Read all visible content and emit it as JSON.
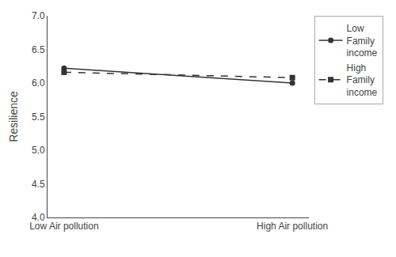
{
  "chart_data": {
    "type": "line",
    "categories": [
      "Low Air pollution",
      "High Air pollution"
    ],
    "series": [
      {
        "name": "Low\nFamily\nincome",
        "color": "#333333",
        "marker": "circle",
        "line_style": "solid",
        "values": [
          6.22,
          6.0
        ]
      },
      {
        "name": "High\nFamily\nincome",
        "color": "#333333",
        "marker": "square",
        "line_style": "dashed",
        "values": [
          6.16,
          6.08
        ]
      }
    ],
    "y_label": "Resilience",
    "ylim": [
      4,
      7
    ],
    "yticks": [
      {
        "value": 4,
        "label": "4.0"
      },
      4.5,
      {
        "value": 5,
        "label": "5.0"
      },
      5.5,
      {
        "value": 6,
        "label": "6.0"
      },
      6.5,
      {
        "value": 7,
        "label": "7.0"
      }
    ],
    "grid": false,
    "legend": "upper right"
  }
}
